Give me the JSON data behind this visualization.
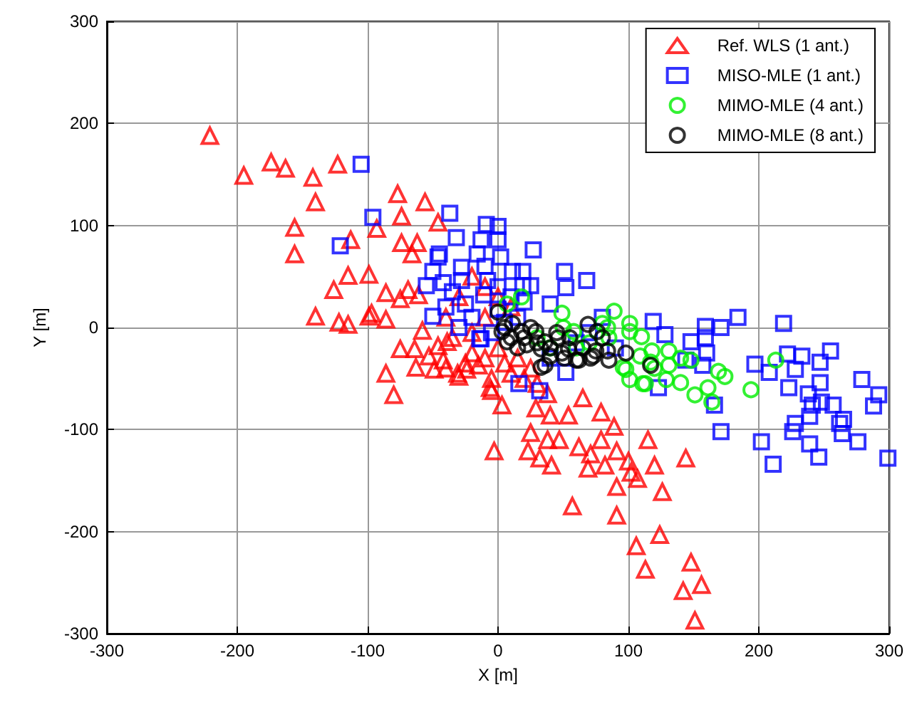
{
  "chart_data": {
    "type": "scatter",
    "xlabel": "X [m]",
    "ylabel": "Y [m]",
    "xlim": [
      -300,
      300
    ],
    "xticks": [
      -300,
      -200,
      -100,
      0,
      100,
      200,
      300
    ],
    "ylim": [
      -300,
      300
    ],
    "yticks": [
      -300,
      -200,
      -100,
      0,
      100,
      200,
      300
    ],
    "grid": true,
    "legend": "top right",
    "series": [
      {
        "name": "Ref. WLS (1 ant.)",
        "color": "#ff0000",
        "marker": "triangle",
        "x": [
          -140,
          -122,
          -115,
          -97,
          -86,
          -126,
          -115,
          -99,
          -86,
          -156,
          -156,
          -140,
          -142,
          -163,
          -174,
          -195,
          -221,
          -123,
          -77,
          -56,
          -74,
          -93,
          -113,
          -74,
          -62,
          -66,
          -46,
          -69,
          -61,
          -75,
          -99,
          -86,
          -80,
          -75,
          -64,
          -63,
          -58,
          -3,
          -46,
          -39,
          -31,
          -24,
          -6,
          -49,
          -42,
          -53,
          65,
          79,
          89,
          25,
          38,
          47,
          62,
          71,
          79,
          91,
          23,
          32,
          41,
          69,
          82,
          100,
          102,
          107,
          115,
          120,
          144,
          91,
          126,
          57,
          91,
          124,
          106,
          113,
          148,
          142,
          156,
          151,
          -5,
          3,
          29,
          40,
          54,
          38,
          -30,
          -15,
          -20,
          -10,
          0,
          5,
          10,
          15,
          20,
          25,
          30,
          -5,
          -25,
          -40,
          -35,
          -20,
          -10,
          -40,
          -30,
          -20,
          -10,
          0,
          10
        ],
        "values": [
          11,
          5,
          3,
          14,
          8,
          37,
          51,
          52,
          34,
          72,
          98,
          123,
          147,
          156,
          162,
          149,
          188,
          160,
          131,
          123,
          109,
          97,
          86,
          83,
          83,
          72,
          103,
          37,
          32,
          28,
          11,
          -45,
          -66,
          -21,
          -21,
          -39,
          -3,
          -121,
          -18,
          -14,
          -45,
          -41,
          -59,
          -41,
          -32,
          -28,
          -69,
          -83,
          -97,
          -103,
          -110,
          -110,
          -117,
          -124,
          -110,
          -121,
          -121,
          -128,
          -135,
          -138,
          -135,
          -131,
          -142,
          -148,
          -110,
          -135,
          -128,
          -156,
          -161,
          -175,
          -184,
          -203,
          -214,
          -237,
          -230,
          -258,
          -252,
          -287,
          -62,
          -76,
          -79,
          -86,
          -86,
          -65,
          -48,
          -37,
          -25,
          -30,
          -20,
          -35,
          -45,
          -30,
          -50,
          -40,
          -55,
          -50,
          -35,
          -40,
          -10,
          -5,
          10,
          10,
          30,
          50,
          40,
          30,
          20
        ]
      },
      {
        "name": "MISO-MLE (1 ant.)",
        "color": "#0000ff",
        "marker": "square",
        "x": [
          -105,
          -96,
          -121,
          -37,
          -32,
          -50,
          -46,
          -9,
          0,
          16,
          32,
          -13,
          52,
          119,
          128,
          159,
          171,
          184,
          219,
          148,
          159,
          160,
          157,
          144,
          123,
          166,
          171,
          202,
          211,
          197,
          208,
          222,
          228,
          233,
          247,
          255,
          223,
          247,
          279,
          292,
          288,
          238,
          241,
          248,
          257,
          265,
          239,
          228,
          226,
          239,
          246,
          264,
          276,
          299,
          262,
          -13,
          0,
          27,
          -45,
          -50,
          -55,
          -42,
          -28,
          -16,
          2,
          11,
          19,
          19,
          25,
          51,
          52,
          68,
          -11,
          -25,
          -14,
          40,
          0,
          -28,
          -8,
          -40,
          -30,
          -20,
          -5,
          5,
          10,
          15,
          -10,
          0,
          -35,
          20,
          30,
          40,
          60,
          70,
          80,
          90
        ],
        "values": [
          160,
          108,
          80,
          112,
          88,
          11,
          69,
          101,
          99,
          -55,
          -62,
          -11,
          -44,
          6,
          -7,
          1,
          0,
          10,
          4,
          -14,
          -10,
          -25,
          -37,
          -32,
          -59,
          -76,
          -102,
          -112,
          -134,
          -36,
          -44,
          -26,
          -41,
          -28,
          -34,
          -23,
          -59,
          -54,
          -51,
          -66,
          -77,
          -65,
          -76,
          -73,
          -76,
          -90,
          -87,
          -94,
          -102,
          -114,
          -127,
          -104,
          -112,
          -128,
          -94,
          86,
          86,
          76,
          72,
          55,
          41,
          44,
          59,
          72,
          69,
          55,
          55,
          41,
          41,
          55,
          39,
          46,
          32,
          23,
          -11,
          23,
          18,
          46,
          46,
          20,
          0,
          10,
          -5,
          5,
          30,
          10,
          60,
          40,
          35,
          25,
          null,
          -30,
          -15,
          -5,
          10,
          -20
        ]
      },
      {
        "name": "MIMO-MLE (4 ant.)",
        "color": "#00ee00",
        "marker": "circle",
        "x": [
          89,
          84,
          101,
          101,
          110,
          118,
          131,
          148,
          131,
          169,
          174,
          129,
          140,
          111,
          101,
          96,
          161,
          151,
          164,
          194,
          213,
          109,
          117,
          18,
          49,
          7,
          58,
          80,
          98,
          113,
          30,
          40,
          50,
          60,
          70,
          85,
          120,
          140
        ],
        "values": [
          16,
          0,
          4,
          -4,
          -9,
          -23,
          -23,
          -32,
          -37,
          -43,
          -48,
          -51,
          -54,
          -55,
          -51,
          -39,
          -59,
          -66,
          -73,
          -61,
          -32,
          -28,
          -34,
          30,
          14,
          23,
          -4,
          4,
          -41,
          -55,
          -10,
          -20,
          0,
          -20,
          -15,
          -10,
          -40,
          -30
        ]
      },
      {
        "name": "MIMO-MLE (8 ant.)",
        "color": "#000000",
        "marker": "circle",
        "x": [
          117,
          98,
          84,
          85,
          76,
          0,
          11,
          18,
          29,
          36,
          46,
          54,
          69,
          80,
          75,
          3,
          7,
          22,
          33,
          40,
          71,
          62,
          33,
          60,
          49,
          36,
          51,
          73,
          5,
          10,
          15,
          20,
          25,
          30,
          40,
          45,
          55,
          65
        ],
        "values": [
          -37,
          -25,
          -23,
          -32,
          -4,
          15,
          4,
          -4,
          -4,
          -14,
          -10,
          -21,
          3,
          -10,
          -23,
          -4,
          -14,
          -17,
          -21,
          -28,
          -30,
          -32,
          -39,
          -32,
          -25,
          -37,
          -30,
          -28,
          0,
          -10,
          -20,
          -10,
          0,
          -15,
          -20,
          -5,
          -10,
          -20
        ]
      }
    ]
  }
}
